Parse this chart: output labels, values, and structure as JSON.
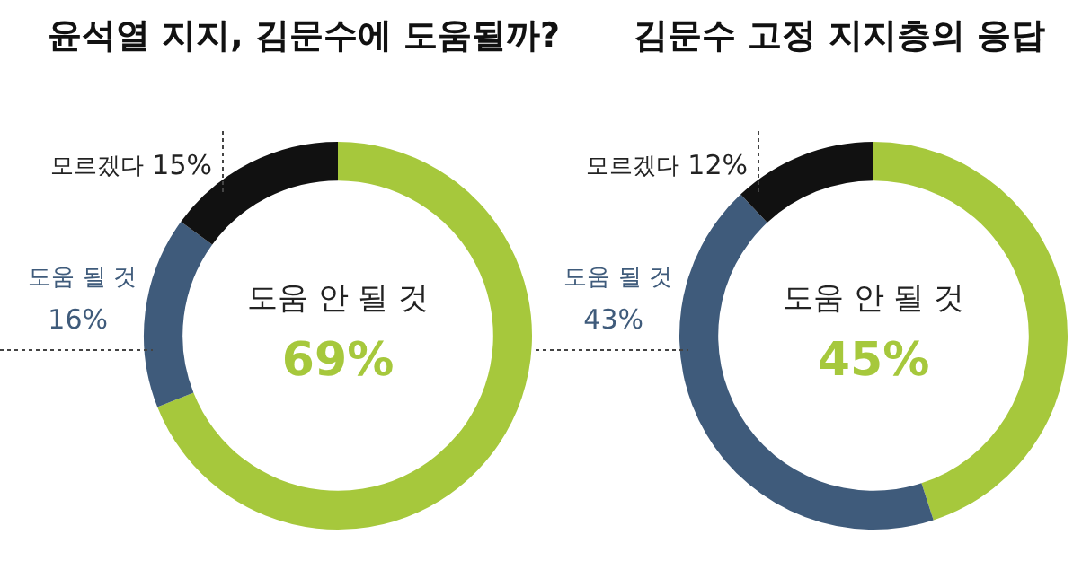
{
  "chart_data": [
    {
      "type": "donut",
      "title": "윤석열 지지, 김문수에 도움될까?",
      "categories": [
        "도움 안 될 것",
        "도움 될 것",
        "모르겠다"
      ],
      "values": [
        69,
        16,
        15
      ],
      "colors": [
        "#a6c83c",
        "#3f5b7b",
        "#111111"
      ],
      "value_labels": [
        "69%",
        "16%",
        "15%"
      ]
    },
    {
      "type": "donut",
      "title": "김문수 고정 지지층의 응답",
      "categories": [
        "도움 안 될 것",
        "도움 될 것",
        "모르겠다"
      ],
      "values": [
        45,
        43,
        12
      ],
      "colors": [
        "#a6c83c",
        "#3f5b7b",
        "#111111"
      ],
      "value_labels": [
        "45%",
        "43%",
        "12%"
      ]
    }
  ]
}
